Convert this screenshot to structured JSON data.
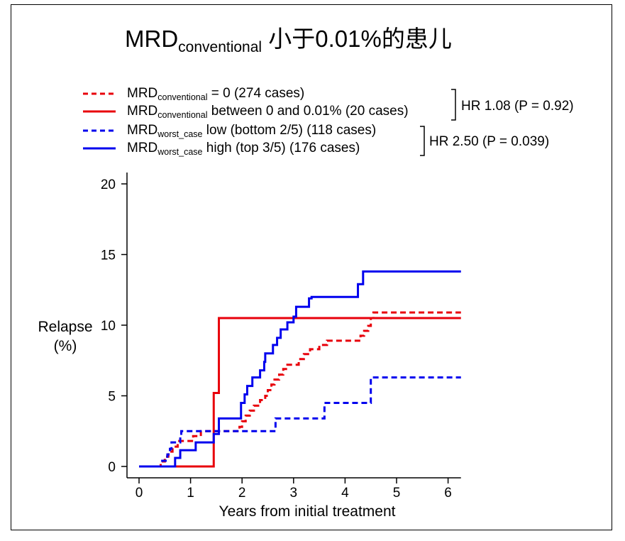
{
  "title": {
    "prefix": "MRD",
    "subscript": "conventional",
    "suffix": " 小于0.01%的患儿"
  },
  "legend": [
    {
      "base": "MRD",
      "sub": "conventional",
      "rest": " = 0 (274 cases)",
      "color": "#e8000b",
      "dash": true
    },
    {
      "base": "MRD",
      "sub": "conventional",
      "rest": " between 0 and 0.01% (20 cases)",
      "color": "#e8000b",
      "dash": false
    },
    {
      "base": "MRD",
      "sub": "worst_case",
      "rest": " low (bottom 2/5) (118 cases)",
      "color": "#0000ee",
      "dash": true
    },
    {
      "base": "MRD",
      "sub": "worst_case",
      "rest": " high (top 3/5) (176 cases)",
      "color": "#0000ee",
      "dash": false
    }
  ],
  "hazard_ratios": [
    "HR 1.08 (P = 0.92)",
    "HR 2.50 (P = 0.039)"
  ],
  "axes": {
    "ylabel_line1": "Relapse",
    "ylabel_line2": "(%)",
    "xlabel": "Years from initial treatment"
  },
  "chart_data": {
    "type": "line",
    "step": true,
    "xlim": [
      0,
      6.25
    ],
    "ylim": [
      0,
      20
    ],
    "xticks": [
      0,
      1,
      2,
      3,
      4,
      5,
      6
    ],
    "yticks": [
      0,
      5,
      10,
      15,
      20
    ],
    "grid": false,
    "legend_position": "top",
    "series": [
      {
        "name": "MRDconventional = 0 (274 cases)",
        "color": "#e8000b",
        "dashed": true,
        "points": [
          [
            0,
            0
          ],
          [
            0.42,
            0.35
          ],
          [
            0.5,
            0.7
          ],
          [
            0.57,
            1.05
          ],
          [
            0.65,
            1.4
          ],
          [
            0.75,
            1.8
          ],
          [
            1.05,
            2.15
          ],
          [
            1.2,
            2.5
          ],
          [
            1.4,
            2.5
          ],
          [
            1.95,
            2.8
          ],
          [
            2.0,
            3.2
          ],
          [
            2.07,
            3.6
          ],
          [
            2.15,
            3.95
          ],
          [
            2.23,
            4.3
          ],
          [
            2.35,
            4.7
          ],
          [
            2.45,
            5.0
          ],
          [
            2.5,
            5.4
          ],
          [
            2.57,
            5.8
          ],
          [
            2.63,
            6.15
          ],
          [
            2.72,
            6.5
          ],
          [
            2.8,
            6.9
          ],
          [
            2.88,
            7.2
          ],
          [
            3.1,
            7.6
          ],
          [
            3.2,
            7.95
          ],
          [
            3.32,
            8.3
          ],
          [
            3.5,
            8.6
          ],
          [
            3.65,
            8.9
          ],
          [
            4.2,
            8.9
          ],
          [
            4.3,
            9.25
          ],
          [
            4.37,
            9.6
          ],
          [
            4.45,
            9.95
          ],
          [
            4.5,
            10.5
          ],
          [
            4.55,
            10.9
          ],
          [
            6.25,
            10.9
          ]
        ]
      },
      {
        "name": "MRDconventional between 0 and 0.01% (20 cases)",
        "color": "#e8000b",
        "dashed": false,
        "points": [
          [
            0,
            0
          ],
          [
            1.45,
            0
          ],
          [
            1.45,
            5.2
          ],
          [
            1.55,
            10.5
          ],
          [
            6.25,
            10.5
          ]
        ]
      },
      {
        "name": "MRDworst_case low (bottom 2/5) (118 cases)",
        "color": "#0000ee",
        "dashed": true,
        "points": [
          [
            0,
            0
          ],
          [
            0.45,
            0.4
          ],
          [
            0.55,
            0.85
          ],
          [
            0.6,
            1.25
          ],
          [
            0.63,
            1.7
          ],
          [
            0.8,
            2.1
          ],
          [
            0.82,
            2.5
          ],
          [
            2.65,
            2.5
          ],
          [
            2.65,
            3.4
          ],
          [
            3.6,
            3.4
          ],
          [
            3.6,
            4.5
          ],
          [
            4.5,
            4.5
          ],
          [
            4.5,
            6.3
          ],
          [
            6.25,
            6.3
          ]
        ]
      },
      {
        "name": "MRDworst_case high (top 3/5) (176 cases)",
        "color": "#0000ee",
        "dashed": false,
        "points": [
          [
            0,
            0
          ],
          [
            0.68,
            0
          ],
          [
            0.7,
            0.6
          ],
          [
            0.8,
            1.15
          ],
          [
            1.1,
            1.7
          ],
          [
            1.45,
            2.3
          ],
          [
            1.55,
            3.4
          ],
          [
            1.95,
            3.4
          ],
          [
            1.98,
            4.5
          ],
          [
            2.05,
            5.1
          ],
          [
            2.1,
            5.7
          ],
          [
            2.2,
            6.3
          ],
          [
            2.35,
            6.8
          ],
          [
            2.43,
            7.4
          ],
          [
            2.45,
            8.0
          ],
          [
            2.6,
            8.6
          ],
          [
            2.68,
            9.1
          ],
          [
            2.75,
            9.7
          ],
          [
            2.88,
            10.2
          ],
          [
            3.0,
            10.6
          ],
          [
            3.05,
            11.3
          ],
          [
            3.3,
            11.9
          ],
          [
            3.35,
            12.0
          ],
          [
            4.25,
            12.9
          ],
          [
            4.35,
            13.8
          ],
          [
            6.25,
            13.8
          ]
        ]
      }
    ]
  }
}
